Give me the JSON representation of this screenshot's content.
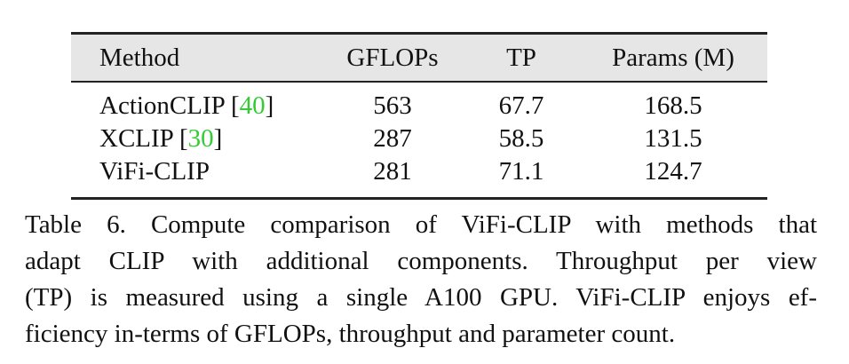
{
  "table": {
    "headers": {
      "method": "Method",
      "gflops": "GFLOPs",
      "tp": "TP",
      "params": "Params (M)"
    },
    "rows": [
      {
        "method": "ActionCLIP",
        "cite": "40",
        "gflops": "563",
        "tp": "67.7",
        "params": "168.5"
      },
      {
        "method": "XCLIP",
        "cite": "30",
        "gflops": "287",
        "tp": "58.5",
        "params": "131.5"
      },
      {
        "method": "ViFi-CLIP",
        "cite": "",
        "gflops": "281",
        "tp": "71.1",
        "params": "124.7"
      }
    ]
  },
  "caption": {
    "lines": [
      "Table 6.  Compute comparison of ViFi-CLIP with methods that",
      "adapt CLIP with additional components.  Throughput per view",
      "(TP) is measured using a single A100 GPU. ViFi-CLIP enjoys ef-",
      "ficiency in-terms of GFLOPs, throughput and parameter count."
    ]
  }
}
